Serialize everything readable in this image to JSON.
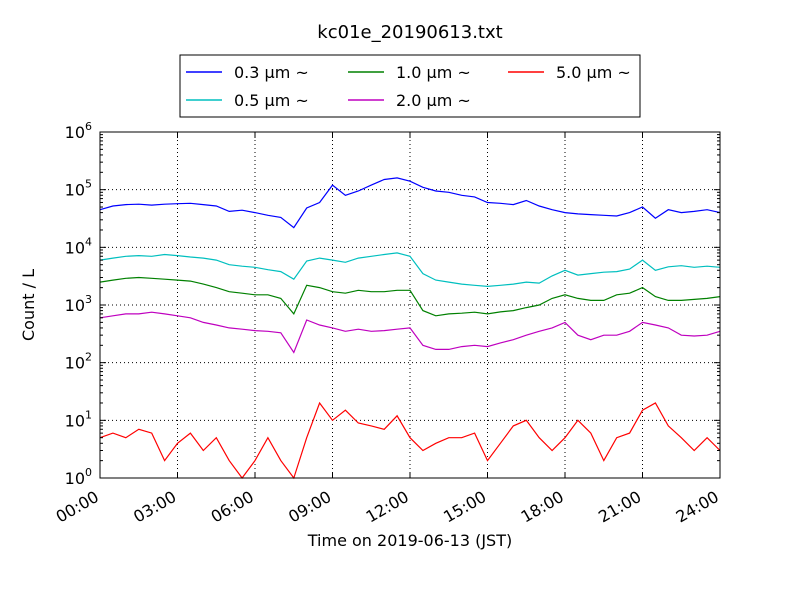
{
  "chart_data": {
    "type": "line",
    "title": "kc01e_20190613.txt",
    "xlabel": "Time on 2019-06-13 (JST)",
    "ylabel": "Count / L",
    "yscale": "log",
    "ylim": [
      1,
      1000000
    ],
    "xlim": [
      "00:00",
      "24:00"
    ],
    "grid": true,
    "legend_position": "top",
    "x_ticks": [
      "00:00",
      "03:00",
      "06:00",
      "09:00",
      "12:00",
      "15:00",
      "18:00",
      "21:00",
      "24:00"
    ],
    "y_ticks": [
      {
        "base": "10",
        "exp": "0"
      },
      {
        "base": "10",
        "exp": "1"
      },
      {
        "base": "10",
        "exp": "2"
      },
      {
        "base": "10",
        "exp": "3"
      },
      {
        "base": "10",
        "exp": "4"
      },
      {
        "base": "10",
        "exp": "5"
      },
      {
        "base": "10",
        "exp": "6"
      }
    ],
    "x": [
      "00:00",
      "00:30",
      "01:00",
      "01:30",
      "02:00",
      "02:30",
      "03:00",
      "03:30",
      "04:00",
      "04:30",
      "05:00",
      "05:30",
      "06:00",
      "06:30",
      "07:00",
      "07:30",
      "08:00",
      "08:30",
      "09:00",
      "09:30",
      "10:00",
      "10:30",
      "11:00",
      "11:30",
      "12:00",
      "12:30",
      "13:00",
      "13:30",
      "14:00",
      "14:30",
      "15:00",
      "15:30",
      "16:00",
      "16:30",
      "17:00",
      "17:30",
      "18:00",
      "18:30",
      "19:00",
      "19:30",
      "20:00",
      "20:30",
      "21:00",
      "21:30",
      "22:00",
      "22:30",
      "23:00",
      "23:30",
      "24:00"
    ],
    "series": [
      {
        "name": "0.3 μm ~",
        "color": "#0000ff",
        "values": [
          45000,
          52000,
          55000,
          56000,
          54000,
          56000,
          57000,
          58000,
          55000,
          52000,
          42000,
          44000,
          40000,
          36000,
          33000,
          22000,
          48000,
          60000,
          120000,
          80000,
          95000,
          120000,
          150000,
          160000,
          140000,
          110000,
          95000,
          90000,
          80000,
          75000,
          60000,
          58000,
          55000,
          65000,
          52000,
          45000,
          40000,
          38000,
          37000,
          36000,
          35000,
          40000,
          50000,
          32000,
          45000,
          40000,
          42000,
          45000,
          40000
        ]
      },
      {
        "name": "0.5 μm ~",
        "color": "#00bfbf",
        "values": [
          6000,
          6500,
          7000,
          7200,
          7000,
          7500,
          7200,
          6800,
          6500,
          6000,
          5000,
          4700,
          4500,
          4100,
          3800,
          2800,
          5800,
          6500,
          6000,
          5500,
          6500,
          7000,
          7500,
          8000,
          7000,
          3500,
          2700,
          2500,
          2300,
          2200,
          2100,
          2200,
          2300,
          2500,
          2400,
          3200,
          4000,
          3300,
          3500,
          3700,
          3800,
          4200,
          6000,
          4000,
          4600,
          4800,
          4500,
          4700,
          4500
        ]
      },
      {
        "name": "1.0 μm ~",
        "color": "#008000",
        "values": [
          2500,
          2700,
          2900,
          3000,
          2900,
          2800,
          2700,
          2600,
          2300,
          2000,
          1700,
          1600,
          1500,
          1500,
          1300,
          700,
          2200,
          2000,
          1700,
          1600,
          1800,
          1700,
          1700,
          1800,
          1800,
          800,
          650,
          700,
          720,
          750,
          700,
          760,
          800,
          900,
          1000,
          1300,
          1500,
          1300,
          1200,
          1200,
          1500,
          1600,
          2000,
          1400,
          1200,
          1200,
          1250,
          1300,
          1400
        ]
      },
      {
        "name": "2.0 μm ~",
        "color": "#bf00bf",
        "values": [
          600,
          650,
          700,
          700,
          750,
          700,
          650,
          600,
          500,
          450,
          400,
          380,
          360,
          350,
          330,
          150,
          550,
          450,
          400,
          350,
          380,
          350,
          360,
          380,
          400,
          200,
          170,
          170,
          190,
          200,
          190,
          220,
          250,
          300,
          350,
          400,
          500,
          300,
          250,
          300,
          300,
          350,
          500,
          450,
          400,
          300,
          290,
          300,
          350
        ]
      },
      {
        "name": "5.0 μm ~",
        "color": "#ff0000",
        "values": [
          5,
          6,
          5,
          7,
          6,
          2,
          4,
          6,
          3,
          5,
          2,
          1,
          2,
          5,
          2,
          1,
          5,
          20,
          10,
          15,
          9,
          8,
          7,
          12,
          5,
          3,
          4,
          5,
          5,
          6,
          2,
          4,
          8,
          10,
          5,
          3,
          5,
          10,
          6,
          2,
          5,
          6,
          15,
          20,
          8,
          5,
          3,
          5,
          3
        ]
      }
    ]
  }
}
